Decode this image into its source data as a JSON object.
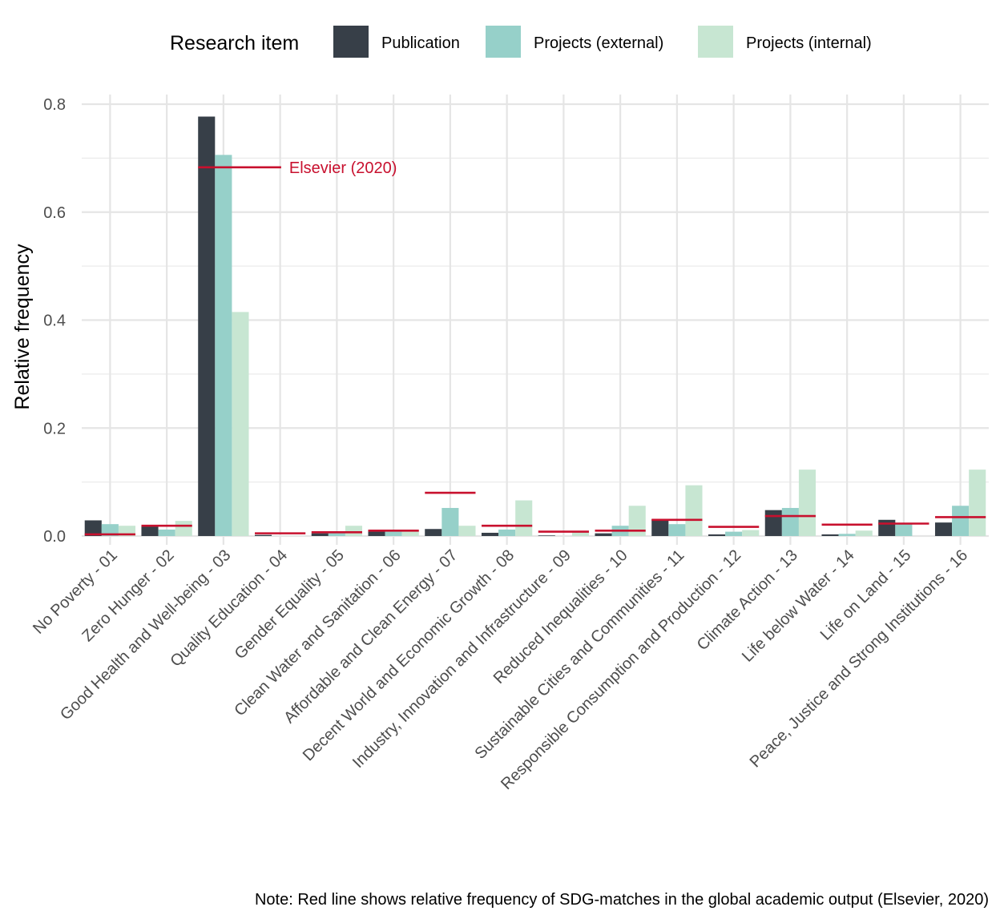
{
  "chart_data": {
    "type": "bar",
    "legend": {
      "title": "Research item",
      "position": "top"
    },
    "categories": [
      "No Poverty - 01",
      "Zero Hunger - 02",
      "Good Health and Well-being - 03",
      "Quality Education - 04",
      "Gender Equality - 05",
      "Clean Water and Sanitation - 06",
      "Affordable and Clean Energy - 07",
      "Decent World and Economic Growth - 08",
      "Industry, Innovation and Infrastructure - 09",
      "Reduced Inequalities - 10",
      "Sustainable Cities and Communities - 11",
      "Responsible Consumption and Production - 12",
      "Climate Action - 13",
      "Life below Water - 14",
      "Life on Land - 15",
      "Peace, Justice and Strong Institutions - 16"
    ],
    "series": [
      {
        "name": "Publication",
        "color": "#373F48",
        "values": [
          0.029,
          0.019,
          0.777,
          0.002,
          0.005,
          0.011,
          0.013,
          0.006,
          0.001,
          0.005,
          0.031,
          0.003,
          0.048,
          0.003,
          0.03,
          0.025
        ]
      },
      {
        "name": "Projects (external)",
        "color": "#96D0C9",
        "values": [
          0.022,
          0.012,
          0.706,
          0.0,
          0.008,
          0.01,
          0.052,
          0.012,
          0.0,
          0.019,
          0.022,
          0.008,
          0.052,
          0.004,
          0.022,
          0.056
        ]
      },
      {
        "name": "Projects (internal)",
        "color": "#C7E6D2",
        "values": [
          0.019,
          0.028,
          0.415,
          0.0,
          0.019,
          0.01,
          0.019,
          0.066,
          0.009,
          0.056,
          0.094,
          0.011,
          0.123,
          0.01,
          0.0,
          0.123
        ]
      }
    ],
    "reference": {
      "name": "Elsevier (2020)",
      "color": "#C8102E",
      "values": [
        0.003,
        0.019,
        0.683,
        0.005,
        0.007,
        0.01,
        0.08,
        0.019,
        0.008,
        0.01,
        0.03,
        0.017,
        0.037,
        0.021,
        0.023,
        0.035
      ]
    },
    "ylabel": "Relative frequency",
    "xlabel": "",
    "ylim": [
      0,
      0.8
    ],
    "yticks": [
      0.0,
      0.2,
      0.4,
      0.6,
      0.8
    ],
    "ytick_labels": [
      "0.0",
      "0.2",
      "0.4",
      "0.6",
      "0.8"
    ],
    "grid": true
  },
  "note": "Note: Red line shows relative frequency of SDG-matches in the global academic output (Elsevier, 2020)"
}
